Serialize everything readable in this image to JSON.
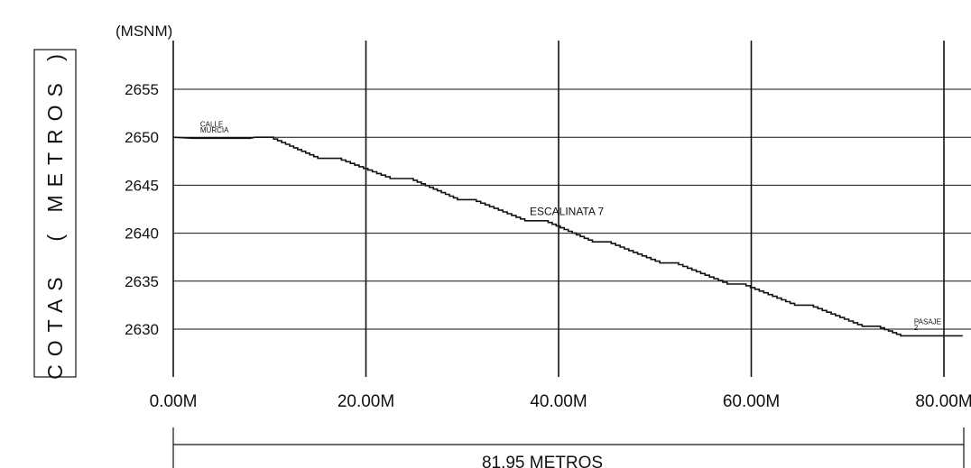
{
  "chart_data": {
    "type": "line",
    "unit_label": "(MSNM)",
    "ylabel": "COTAS  ( METROS )",
    "xlabel": "",
    "x_ticks": [
      {
        "value": 0,
        "label": "0.00M"
      },
      {
        "value": 20,
        "label": "20.00M"
      },
      {
        "value": 40,
        "label": "40.00M"
      },
      {
        "value": 60,
        "label": "60.00M"
      },
      {
        "value": 80,
        "label": "80.00M"
      }
    ],
    "y_ticks": [
      2655,
      2650,
      2645,
      2640,
      2635,
      2630
    ],
    "xlim": [
      0,
      82
    ],
    "ylim": [
      2627,
      2660
    ],
    "grid": true,
    "total_length_label": "81.95 METROS",
    "total_length": 81.95,
    "series": [
      {
        "points": [
          [
            0.0,
            2650.0
          ],
          [
            2.0,
            2649.9
          ],
          [
            8.0,
            2649.9
          ],
          [
            8.5,
            2650.0
          ],
          [
            10.0,
            2650.0
          ],
          [
            15.0,
            2647.8
          ],
          [
            17.0,
            2647.8
          ],
          [
            22.5,
            2645.7
          ],
          [
            24.5,
            2645.7
          ],
          [
            29.5,
            2643.5
          ],
          [
            31.0,
            2643.5
          ],
          [
            36.5,
            2641.3
          ],
          [
            38.5,
            2641.3
          ],
          [
            43.5,
            2639.1
          ],
          [
            45.0,
            2639.1
          ],
          [
            50.5,
            2636.9
          ],
          [
            52.0,
            2636.9
          ],
          [
            57.5,
            2634.7
          ],
          [
            59.0,
            2634.7
          ],
          [
            64.5,
            2632.5
          ],
          [
            66.0,
            2632.5
          ],
          [
            71.5,
            2630.3
          ],
          [
            73.0,
            2630.3
          ],
          [
            75.5,
            2629.3
          ],
          [
            81.95,
            2629.3
          ]
        ]
      }
    ],
    "annotations": [
      {
        "lines": [
          "CALLE",
          "MURCIA"
        ],
        "x": 2.8,
        "y": 2650.5
      },
      {
        "lines": [
          "ESCALINATA 7"
        ],
        "x": 37.0,
        "y": 2641.9
      },
      {
        "lines": [
          "PASAJE",
          "2"
        ],
        "x": 76.9,
        "y": 2629.9
      }
    ]
  }
}
